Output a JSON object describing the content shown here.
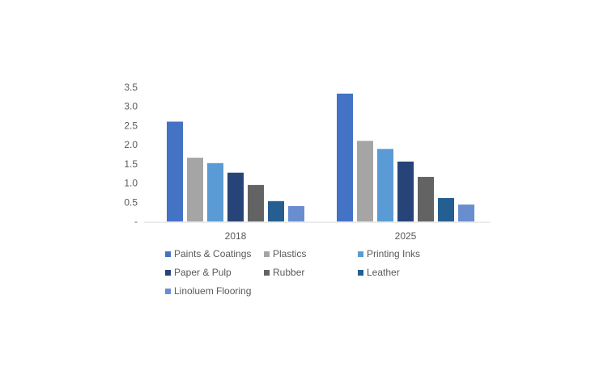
{
  "chart_data": {
    "type": "bar",
    "categories": [
      "2018",
      "2025"
    ],
    "series": [
      {
        "name": "Paints & Coatings",
        "color": "#4472C4",
        "values": [
          2.6,
          3.33
        ]
      },
      {
        "name": "Plastics",
        "color": "#A5A5A5",
        "values": [
          1.66,
          2.1
        ]
      },
      {
        "name": "Printing Inks",
        "color": "#5B9BD5",
        "values": [
          1.52,
          1.89
        ]
      },
      {
        "name": "Paper & Pulp",
        "color": "#264478",
        "values": [
          1.27,
          1.56
        ]
      },
      {
        "name": "Rubber",
        "color": "#636363",
        "values": [
          0.95,
          1.16
        ]
      },
      {
        "name": "Leather",
        "color": "#255E91",
        "values": [
          0.53,
          0.61
        ]
      },
      {
        "name": "Linoluem Flooring",
        "color": "#698ED0",
        "values": [
          0.4,
          0.44
        ]
      }
    ],
    "ylim": [
      0,
      3.5
    ],
    "yticks": [
      "-",
      "0.5",
      "1.0",
      "1.5",
      "2.0",
      "2.5",
      "3.0",
      "3.5"
    ],
    "grid": false,
    "legend": "bottom",
    "title": "",
    "xlabel": "",
    "ylabel": ""
  }
}
